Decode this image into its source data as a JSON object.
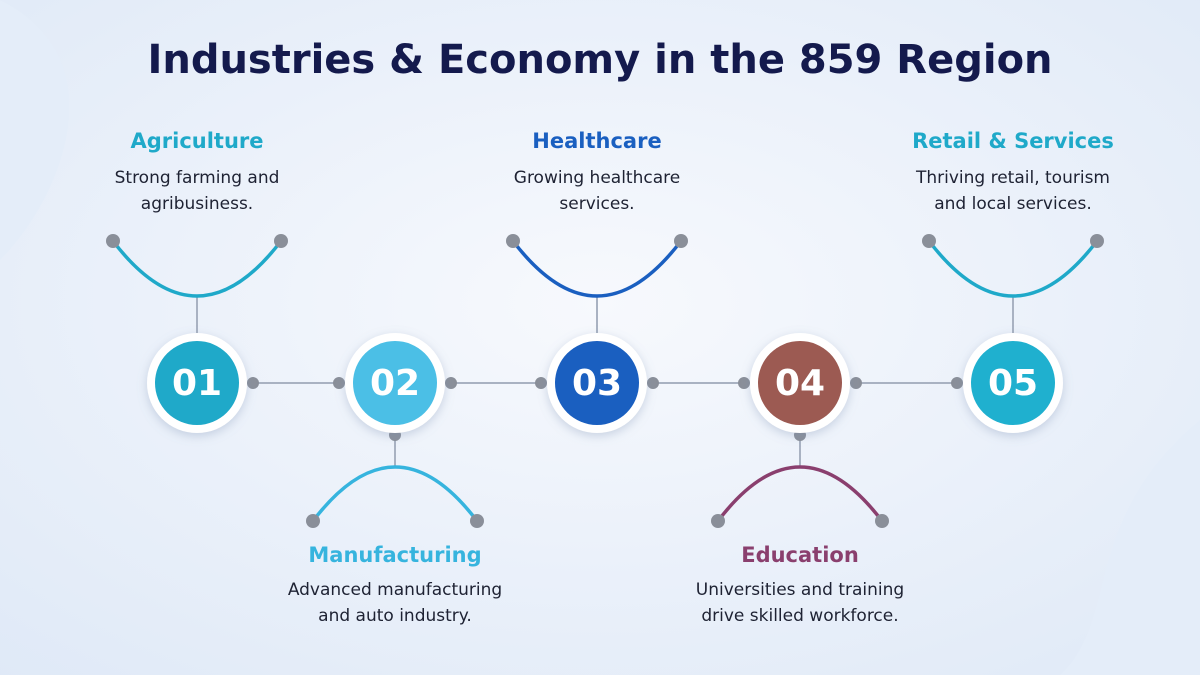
{
  "title": "Industries & Economy in the 859 Region",
  "items": [
    {
      "number": "01",
      "heading": "Agriculture",
      "description": [
        "Strong farming and",
        "agribusiness."
      ]
    },
    {
      "number": "02",
      "heading": "Manufacturing",
      "description": [
        "Advanced manufacturing",
        "and auto industry."
      ]
    },
    {
      "number": "03",
      "heading": "Healthcare",
      "description": [
        "Growing healthcare",
        "services."
      ]
    },
    {
      "number": "04",
      "heading": "Education",
      "description": [
        "Universities and training",
        "drive skilled workforce."
      ]
    },
    {
      "number": "05",
      "heading": "Retail & Services",
      "description": [
        "Thriving retail, tourism",
        "and local services."
      ]
    }
  ]
}
